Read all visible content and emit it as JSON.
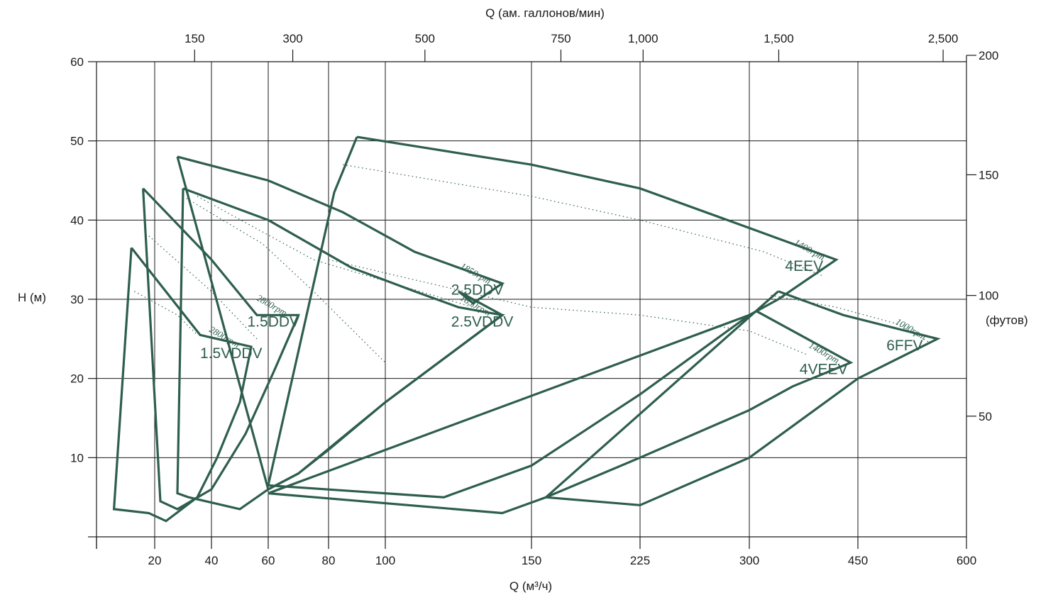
{
  "chart_data": {
    "type": "line",
    "title": "",
    "xlabel": "Q (м³/ч)",
    "x2label": "Q (ам. галлонов/мин)",
    "ylabel": "H (м)",
    "y2label": "(футов)",
    "xlim": [
      0,
      600
    ],
    "ylim": [
      0,
      60
    ],
    "grid": true,
    "x_ticks": [
      "20",
      "40",
      "60",
      "80",
      "100",
      "150",
      "225",
      "300",
      "450",
      "600"
    ],
    "x2_ticks": [
      "150",
      "300",
      "500",
      "750",
      "1,000",
      "1,500",
      "2,500"
    ],
    "y_ticks": [
      "10",
      "20",
      "30",
      "40",
      "50",
      "60"
    ],
    "y2_ticks": [
      "50",
      "100",
      "150",
      "200"
    ],
    "series": [
      {
        "name": "1.5VDDV",
        "envelope": [
          [
            12,
            36.5
          ],
          [
            36,
            25.5
          ],
          [
            54,
            24
          ],
          [
            50,
            17
          ],
          [
            42,
            10
          ],
          [
            35,
            5
          ],
          [
            24,
            2
          ],
          [
            18,
            3
          ],
          [
            6,
            3.5
          ],
          [
            12,
            36.5
          ]
        ],
        "speed_curve": [
          [
            13,
            31
          ],
          [
            28,
            28
          ],
          [
            35,
            25.5
          ]
        ],
        "speed_label": "2800rpm"
      },
      {
        "name": "1.5DDV",
        "envelope": [
          [
            16,
            44
          ],
          [
            40,
            35
          ],
          [
            56,
            28
          ],
          [
            70,
            28
          ],
          [
            62,
            21
          ],
          [
            52,
            13
          ],
          [
            40,
            6
          ],
          [
            28,
            3.5
          ],
          [
            22,
            4.5
          ],
          [
            16,
            44
          ]
        ],
        "speed_curve": [
          [
            18,
            38
          ],
          [
            40,
            31
          ],
          [
            56,
            25
          ]
        ],
        "speed_label": "2800rpm"
      },
      {
        "name": "2.5VDDV",
        "envelope": [
          [
            30,
            44
          ],
          [
            60,
            40
          ],
          [
            88,
            34
          ],
          [
            110,
            31
          ],
          [
            125,
            29
          ],
          [
            140,
            28
          ],
          [
            100,
            17
          ],
          [
            70,
            8
          ],
          [
            60,
            6
          ],
          [
            50,
            3.5
          ],
          [
            32,
            5
          ],
          [
            28,
            5.5
          ],
          [
            30,
            44
          ]
        ],
        "speed_curve": [
          [
            30,
            43
          ],
          [
            58,
            37
          ],
          [
            75,
            31
          ],
          [
            100,
            22
          ]
        ],
        "speed_label": "1850rpm"
      },
      {
        "name": "2.5DDV",
        "envelope": [
          [
            28,
            48
          ],
          [
            60,
            45
          ],
          [
            85,
            41
          ],
          [
            110,
            36
          ],
          [
            140,
            32
          ],
          [
            130,
            29.5
          ],
          [
            125,
            31
          ],
          [
            140,
            28
          ],
          [
            100,
            17
          ],
          [
            80,
            11
          ],
          [
            70,
            8
          ],
          [
            60,
            6
          ],
          [
            28,
            48
          ]
        ],
        "speed_curve": [
          [
            35,
            43
          ],
          [
            75,
            35
          ],
          [
            130,
            29
          ]
        ],
        "speed_label": "1850rpm"
      },
      {
        "name": "4EEV",
        "envelope": [
          [
            90,
            50.5
          ],
          [
            150,
            47
          ],
          [
            225,
            44
          ],
          [
            300,
            39
          ],
          [
            420,
            35
          ],
          [
            340,
            30
          ],
          [
            300,
            28
          ],
          [
            225,
            18
          ],
          [
            150,
            9
          ],
          [
            120,
            5
          ],
          [
            100,
            5.5
          ],
          [
            60,
            6.5
          ],
          [
            82,
            43.5
          ],
          [
            90,
            50.5
          ]
        ],
        "speed_curve": [
          [
            85,
            47
          ],
          [
            150,
            43
          ],
          [
            225,
            40
          ],
          [
            320,
            36
          ],
          [
            400,
            33
          ]
        ],
        "speed_label": "1400rpm"
      },
      {
        "name": "4VEEV",
        "envelope": [
          [
            310,
            28.5
          ],
          [
            380,
            25
          ],
          [
            440,
            22
          ],
          [
            360,
            19
          ],
          [
            300,
            16
          ],
          [
            225,
            10
          ],
          [
            160,
            5
          ],
          [
            140,
            3
          ],
          [
            60,
            5.5
          ],
          [
            300,
            28
          ],
          [
            310,
            28.5
          ]
        ],
        "speed_curve": [
          [
            80,
            35
          ],
          [
            150,
            29
          ],
          [
            225,
            28
          ],
          [
            300,
            26
          ],
          [
            380,
            23
          ]
        ],
        "speed_label": "1400rpm"
      },
      {
        "name": "6FFV",
        "envelope": [
          [
            340,
            31
          ],
          [
            430,
            28
          ],
          [
            560,
            25
          ],
          [
            450,
            20
          ],
          [
            360,
            14
          ],
          [
            300,
            10
          ],
          [
            225,
            4
          ],
          [
            160,
            5
          ],
          [
            340,
            31
          ]
        ],
        "speed_curve": [
          [
            330,
            30.5
          ],
          [
            420,
            29
          ],
          [
            500,
            27
          ],
          [
            550,
            24.5
          ]
        ],
        "speed_label": "1000rpm"
      }
    ]
  }
}
